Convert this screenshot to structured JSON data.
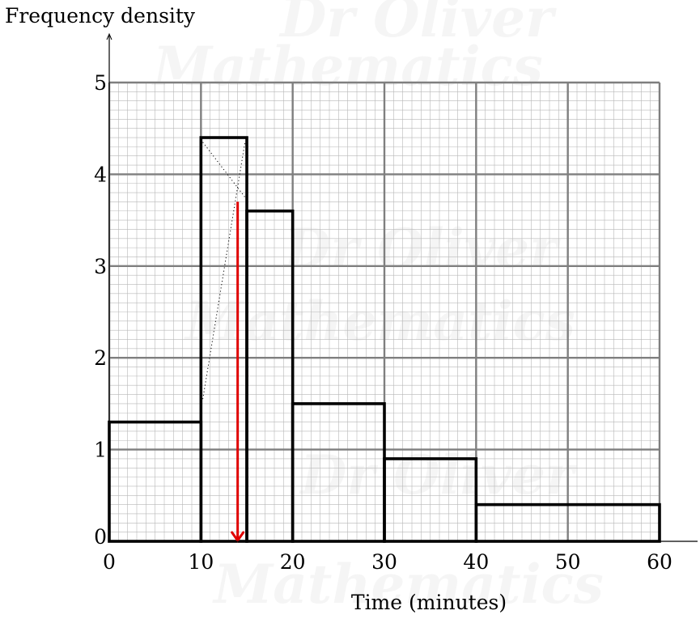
{
  "chart_data": {
    "type": "bar",
    "subtype": "histogram",
    "ylabel": "Frequency density",
    "xlabel": "Time (minutes)",
    "xlim": [
      0,
      60
    ],
    "ylim": [
      0,
      5
    ],
    "xticks": [
      "0",
      "10",
      "20",
      "30",
      "40",
      "50",
      "60"
    ],
    "yticks": [
      "0",
      "1",
      "2",
      "3",
      "4",
      "5"
    ],
    "grid": true,
    "bins": [
      {
        "start": 0,
        "end": 10,
        "value": 1.3
      },
      {
        "start": 10,
        "end": 15,
        "value": 4.4
      },
      {
        "start": 15,
        "end": 20,
        "value": 3.6
      },
      {
        "start": 20,
        "end": 30,
        "value": 1.5
      },
      {
        "start": 30,
        "end": 40,
        "value": 0.9
      },
      {
        "start": 40,
        "end": 60,
        "value": 0.4
      }
    ],
    "annotations": {
      "median_arrow": {
        "x": 14,
        "y_from": 3.7,
        "y_to": 0,
        "color": "#e00000"
      },
      "dotted_guides": [
        {
          "x1": 10.2,
          "y1": 4.35,
          "x2": 14.8,
          "y2": 3.75
        },
        {
          "x1": 10.2,
          "y1": 1.55,
          "x2": 14.8,
          "y2": 4.35
        }
      ]
    },
    "watermark": [
      "Dr Oliver",
      "Mathematics"
    ]
  }
}
